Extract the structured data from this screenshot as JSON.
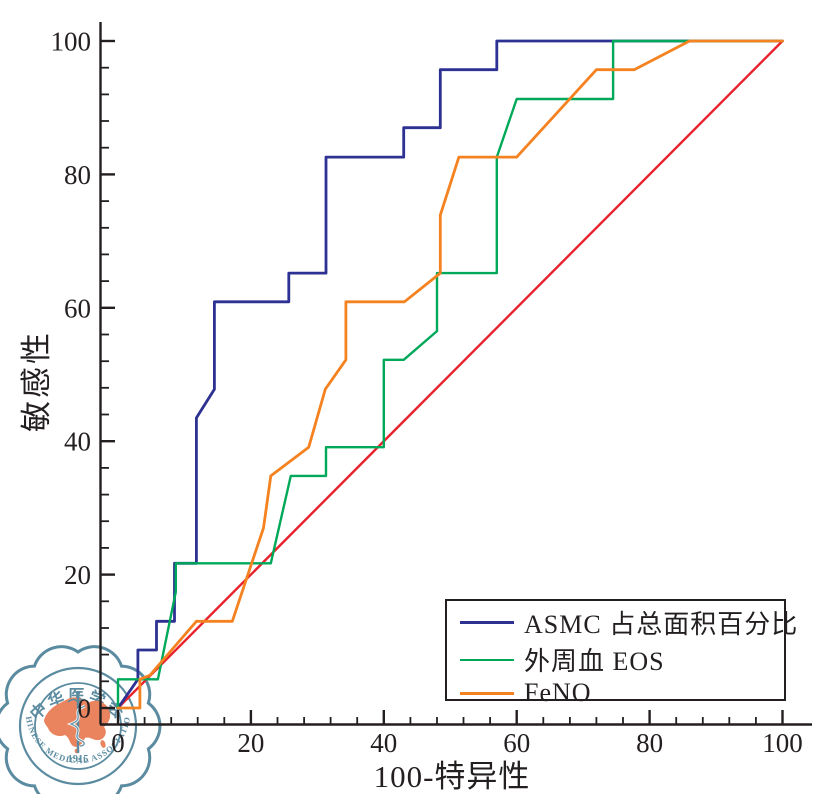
{
  "chart_data": {
    "type": "line",
    "subtype": "roc-curves",
    "title": "",
    "xlabel": "100-特异性",
    "ylabel": "敏感性",
    "xlim": [
      0,
      100
    ],
    "ylim": [
      0,
      100
    ],
    "x_ticks": [
      0,
      20,
      40,
      60,
      80,
      100
    ],
    "y_ticks": [
      0,
      20,
      40,
      60,
      80,
      100
    ],
    "minor_tick_step": 4,
    "grid": false,
    "legend_position": "lower-right",
    "axis_color": "#231f20",
    "series": [
      {
        "key": "asmc",
        "name": "ASMC 占总面积百分比",
        "color": "#2d3192",
        "width": 2.8,
        "points": [
          [
            0,
            0
          ],
          [
            3,
            4.3
          ],
          [
            3,
            8.7
          ],
          [
            5.8,
            8.7
          ],
          [
            5.8,
            13
          ],
          [
            8.5,
            13
          ],
          [
            8.5,
            21.7
          ],
          [
            11.8,
            21.7
          ],
          [
            11.8,
            43.5
          ],
          [
            14.5,
            47.8
          ],
          [
            14.5,
            60.9
          ],
          [
            25.7,
            60.9
          ],
          [
            25.7,
            65.2
          ],
          [
            31.3,
            65.2
          ],
          [
            31.3,
            82.6
          ],
          [
            43,
            82.6
          ],
          [
            43,
            87
          ],
          [
            48.5,
            87
          ],
          [
            48.5,
            95.7
          ],
          [
            57,
            95.7
          ],
          [
            57,
            100
          ],
          [
            100,
            100
          ]
        ]
      },
      {
        "key": "eos",
        "name": "外周血 EOS",
        "color": "#00a859",
        "width": 2.4,
        "points": [
          [
            0,
            0
          ],
          [
            0,
            4.3
          ],
          [
            6,
            4.3
          ],
          [
            8.7,
            17.4
          ],
          [
            8.7,
            21.7
          ],
          [
            23,
            21.7
          ],
          [
            26,
            34.8
          ],
          [
            31.3,
            34.8
          ],
          [
            31.3,
            39.1
          ],
          [
            40,
            39.1
          ],
          [
            40,
            52.2
          ],
          [
            43,
            52.2
          ],
          [
            48,
            56.5
          ],
          [
            48,
            65.2
          ],
          [
            57,
            65.2
          ],
          [
            57,
            82.6
          ],
          [
            60,
            91.3
          ],
          [
            74.5,
            91.3
          ],
          [
            74.5,
            100
          ],
          [
            100,
            100
          ]
        ]
      },
      {
        "key": "feno",
        "name": "FeNO",
        "color": "#f58220",
        "width": 2.8,
        "points": [
          [
            0,
            0
          ],
          [
            3.3,
            0
          ],
          [
            3.3,
            4.3
          ],
          [
            4.8,
            4.9
          ],
          [
            11.8,
            13
          ],
          [
            17.2,
            13
          ],
          [
            21.9,
            27
          ],
          [
            23,
            34.8
          ],
          [
            28.7,
            39.1
          ],
          [
            31.2,
            47.8
          ],
          [
            34.3,
            52.2
          ],
          [
            34.3,
            60.9
          ],
          [
            43.1,
            60.9
          ],
          [
            48.5,
            65.2
          ],
          [
            48.5,
            73.9
          ],
          [
            51.3,
            82.6
          ],
          [
            60,
            82.6
          ],
          [
            72,
            95.7
          ],
          [
            77.7,
            95.7
          ],
          [
            86,
            100
          ],
          [
            100,
            100
          ]
        ]
      }
    ],
    "reference_line": {
      "key": "reference",
      "name": "chance-diagonal",
      "color": "#e8222d",
      "width": 2.4,
      "points": [
        [
          0,
          0
        ],
        [
          100,
          100
        ]
      ]
    }
  },
  "watermark": {
    "top_text": "中华医学会",
    "bottom_text": "CHINESE MEDICAL ASSOCIATION",
    "year": "1915",
    "ring_color": "#4e8298",
    "map_color": "#e87a52"
  }
}
